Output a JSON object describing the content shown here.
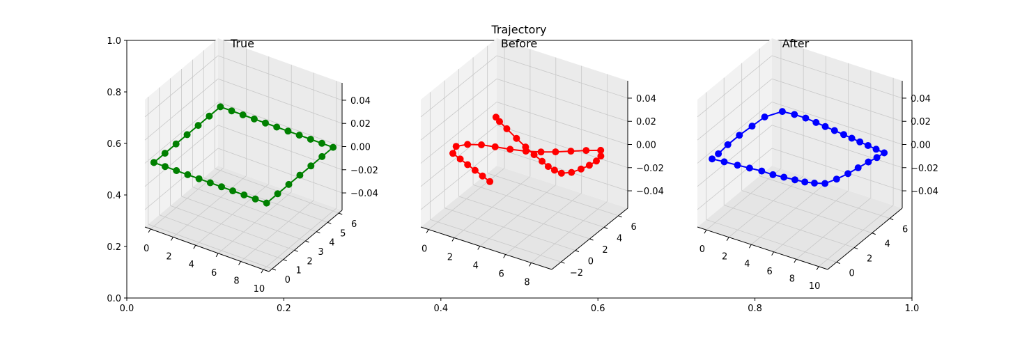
{
  "figure": {
    "suptitle": "Trajectory",
    "outer_axes": {
      "xlim": [
        0.0,
        1.0
      ],
      "ylim": [
        0.0,
        1.0
      ],
      "xticks": [
        "0.0",
        "0.2",
        "0.4",
        "0.6",
        "0.8",
        "1.0"
      ],
      "yticks": [
        "0.0",
        "0.2",
        "0.4",
        "0.6",
        "0.8",
        "1.0"
      ]
    }
  },
  "chart_data": [
    {
      "type": "line3d",
      "title": "True",
      "color": "#008000",
      "marker": "circle",
      "xlim": [
        -0.5,
        10.5
      ],
      "ylim": [
        -0.3,
        6.3
      ],
      "zlim": [
        -0.055,
        0.055
      ],
      "xticks": [
        "0",
        "2",
        "4",
        "6",
        "8",
        "10"
      ],
      "yticks": [
        "0",
        "1",
        "2",
        "3",
        "4",
        "5",
        "6"
      ],
      "zticks": [
        "0.04",
        "0.02",
        "0.00",
        "−0.02",
        "−0.04"
      ],
      "points": {
        "x": [
          0,
          1,
          2,
          3,
          4,
          5,
          6,
          7,
          8,
          9,
          10,
          10,
          10,
          10,
          10,
          10,
          10,
          9,
          8,
          7,
          6,
          5,
          4,
          3,
          2,
          1,
          0,
          0,
          0,
          0,
          0,
          0,
          0
        ],
        "y": [
          0,
          0,
          0,
          0,
          0,
          0,
          0,
          0,
          0,
          0,
          0,
          1,
          2,
          3,
          4,
          5,
          6,
          6,
          6,
          6,
          6,
          6,
          6,
          6,
          6,
          6,
          6,
          5,
          4,
          3,
          2,
          1,
          0
        ],
        "z": [
          0,
          0,
          0,
          0,
          0,
          0,
          0,
          0,
          0,
          0,
          0,
          0,
          0,
          0,
          0,
          0,
          0,
          0,
          0,
          0,
          0,
          0,
          0,
          0,
          0,
          0,
          0,
          0,
          0,
          0,
          0,
          0,
          0
        ]
      }
    },
    {
      "type": "line3d",
      "title": "Before",
      "color": "#ff0000",
      "marker": "circle",
      "xlim": [
        -0.6,
        9.6
      ],
      "ylim": [
        -3.3,
        7.3
      ],
      "zlim": [
        -0.055,
        0.055
      ],
      "xticks": [
        "0",
        "2",
        "4",
        "6",
        "8"
      ],
      "yticks": [
        "−2",
        "0",
        "2",
        "4",
        "6"
      ],
      "zticks": [
        "0.04",
        "0.02",
        "0.00",
        "−0.02",
        "−0.04"
      ],
      "points": {
        "x": [
          4.5,
          3.7,
          2.9,
          2.1,
          1.3,
          0.5,
          0.2,
          0.7,
          1.5,
          2.4,
          3.4,
          4.4,
          5.3,
          6.1,
          6.9,
          7.7,
          8.5,
          8.9,
          9.0,
          8.9,
          8.7,
          8.4,
          7.9,
          7.3,
          6.7,
          6.0,
          5.1,
          4.1,
          3.0,
          1.8,
          0.9,
          0.4
        ],
        "y": [
          -2.8,
          -2.4,
          -2.0,
          -1.6,
          -1.2,
          -0.8,
          0.2,
          0.9,
          1.4,
          1.7,
          2.0,
          2.4,
          2.9,
          3.5,
          4.2,
          4.9,
          5.5,
          4.8,
          4.0,
          3.2,
          2.4,
          1.6,
          1.1,
          1.2,
          1.4,
          1.8,
          2.3,
          2.9,
          3.6,
          4.4,
          5.0,
          5.4
        ],
        "z": [
          0,
          0,
          0,
          0,
          0,
          0,
          0,
          0,
          0,
          0,
          0,
          0,
          0,
          0,
          0,
          0,
          0,
          0,
          0,
          0,
          0,
          0,
          0,
          0,
          0,
          0,
          0,
          0,
          0,
          0,
          0,
          0
        ]
      }
    },
    {
      "type": "line3d",
      "title": "After",
      "color": "#0000ff",
      "marker": "circle",
      "xlim": [
        -0.8,
        10.8
      ],
      "ylim": [
        -1.0,
        7.4
      ],
      "zlim": [
        -0.055,
        0.055
      ],
      "xticks": [
        "0",
        "2",
        "4",
        "6",
        "8",
        "10"
      ],
      "yticks": [
        "0",
        "2",
        "4",
        "6"
      ],
      "zticks": [
        "0.04",
        "0.02",
        "0.00",
        "−0.02",
        "−0.04"
      ],
      "points": {
        "x": [
          -0.2,
          0.8,
          1.9,
          2.9,
          3.9,
          4.9,
          5.8,
          6.7,
          7.5,
          8.2,
          8.9,
          9.3,
          9.6,
          9.8,
          10.0,
          10.2,
          10.3,
          9.5,
          8.7,
          7.9,
          7.1,
          6.3,
          5.4,
          4.5,
          3.6,
          2.6,
          1.6,
          0.6,
          -0.1,
          -0.2,
          -0.3,
          -0.3,
          -0.2
        ],
        "y": [
          -0.1,
          0.0,
          0.1,
          0.2,
          0.3,
          0.3,
          0.4,
          0.5,
          0.6,
          0.8,
          1.1,
          1.9,
          2.8,
          3.7,
          4.6,
          5.3,
          6.0,
          6.1,
          6.2,
          6.3,
          6.4,
          6.5,
          6.6,
          6.7,
          6.8,
          6.9,
          6.9,
          6.8,
          5.7,
          4.4,
          3.1,
          1.8,
          0.6
        ],
        "z": [
          0,
          0,
          0,
          0,
          0,
          0,
          0,
          0,
          0,
          0,
          0,
          0,
          0,
          0,
          0,
          0,
          0,
          0,
          0,
          0,
          0,
          0,
          0,
          0,
          0,
          0,
          0,
          0,
          0,
          0,
          0,
          0,
          0
        ]
      }
    }
  ]
}
